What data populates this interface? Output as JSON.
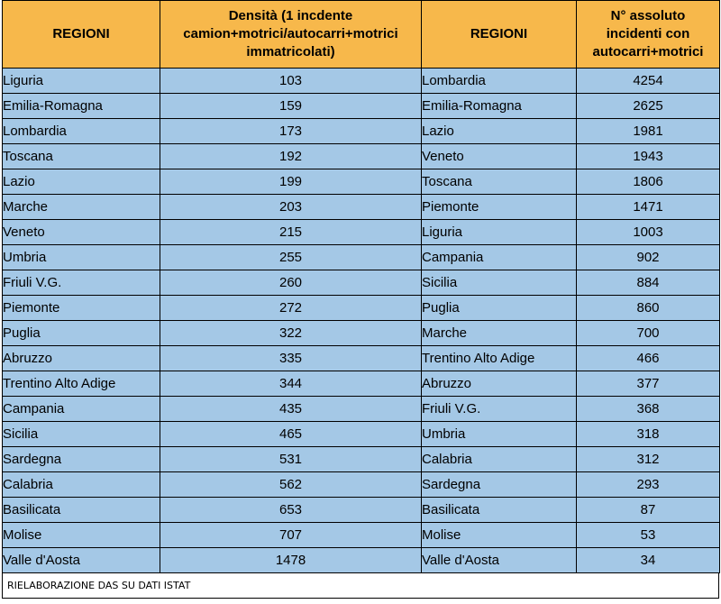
{
  "headers": {
    "left_region": "REGIONI",
    "density_line1": "Densità (1 incdente",
    "density_line2": "camion+motrici/autocarri+motrici",
    "density_line3": "immatricolati)",
    "right_region": "REGIONI",
    "absolute_line1": "N° assoluto",
    "absolute_line2": "incidenti con",
    "absolute_line3": "autocarri+motrici"
  },
  "rows": [
    {
      "left_region": "Liguria",
      "density": "103",
      "right_region": "Lombardia",
      "absolute": "4254"
    },
    {
      "left_region": "Emilia-Romagna",
      "density": "159",
      "right_region": "Emilia-Romagna",
      "absolute": "2625"
    },
    {
      "left_region": "Lombardia",
      "density": "173",
      "right_region": "Lazio",
      "absolute": "1981"
    },
    {
      "left_region": "Toscana",
      "density": "192",
      "right_region": "Veneto",
      "absolute": "1943"
    },
    {
      "left_region": "Lazio",
      "density": "199",
      "right_region": "Toscana",
      "absolute": "1806"
    },
    {
      "left_region": "Marche",
      "density": "203",
      "right_region": "Piemonte",
      "absolute": "1471"
    },
    {
      "left_region": "Veneto",
      "density": "215",
      "right_region": "Liguria",
      "absolute": "1003"
    },
    {
      "left_region": "Umbria",
      "density": "255",
      "right_region": "Campania",
      "absolute": "902"
    },
    {
      "left_region": "Friuli V.G.",
      "density": "260",
      "right_region": "Sicilia",
      "absolute": "884"
    },
    {
      "left_region": "Piemonte",
      "density": "272",
      "right_region": "Puglia",
      "absolute": "860"
    },
    {
      "left_region": "Puglia",
      "density": "322",
      "right_region": "Marche",
      "absolute": "700"
    },
    {
      "left_region": "Abruzzo",
      "density": "335",
      "right_region": "Trentino Alto Adige",
      "absolute": "466"
    },
    {
      "left_region": "Trentino Alto Adige",
      "density": "344",
      "right_region": "Abruzzo",
      "absolute": "377"
    },
    {
      "left_region": "Campania",
      "density": "435",
      "right_region": "Friuli V.G.",
      "absolute": "368"
    },
    {
      "left_region": "Sicilia",
      "density": "465",
      "right_region": "Umbria",
      "absolute": "318"
    },
    {
      "left_region": "Sardegna",
      "density": "531",
      "right_region": "Calabria",
      "absolute": "312"
    },
    {
      "left_region": "Calabria",
      "density": "562",
      "right_region": "Sardegna",
      "absolute": "293"
    },
    {
      "left_region": "Basilicata",
      "density": "653",
      "right_region": "Basilicata",
      "absolute": "87"
    },
    {
      "left_region": "Molise",
      "density": "707",
      "right_region": "Molise",
      "absolute": "53"
    },
    {
      "left_region": "Valle d'Aosta",
      "density": "1478",
      "right_region": "Valle d'Aosta",
      "absolute": "34"
    }
  ],
  "footer": "RIELABORAZIONE DAS SU DATI ISTAT",
  "colors": {
    "header_bg": "#f7b84b",
    "cell_bg": "#a4c8e6"
  }
}
